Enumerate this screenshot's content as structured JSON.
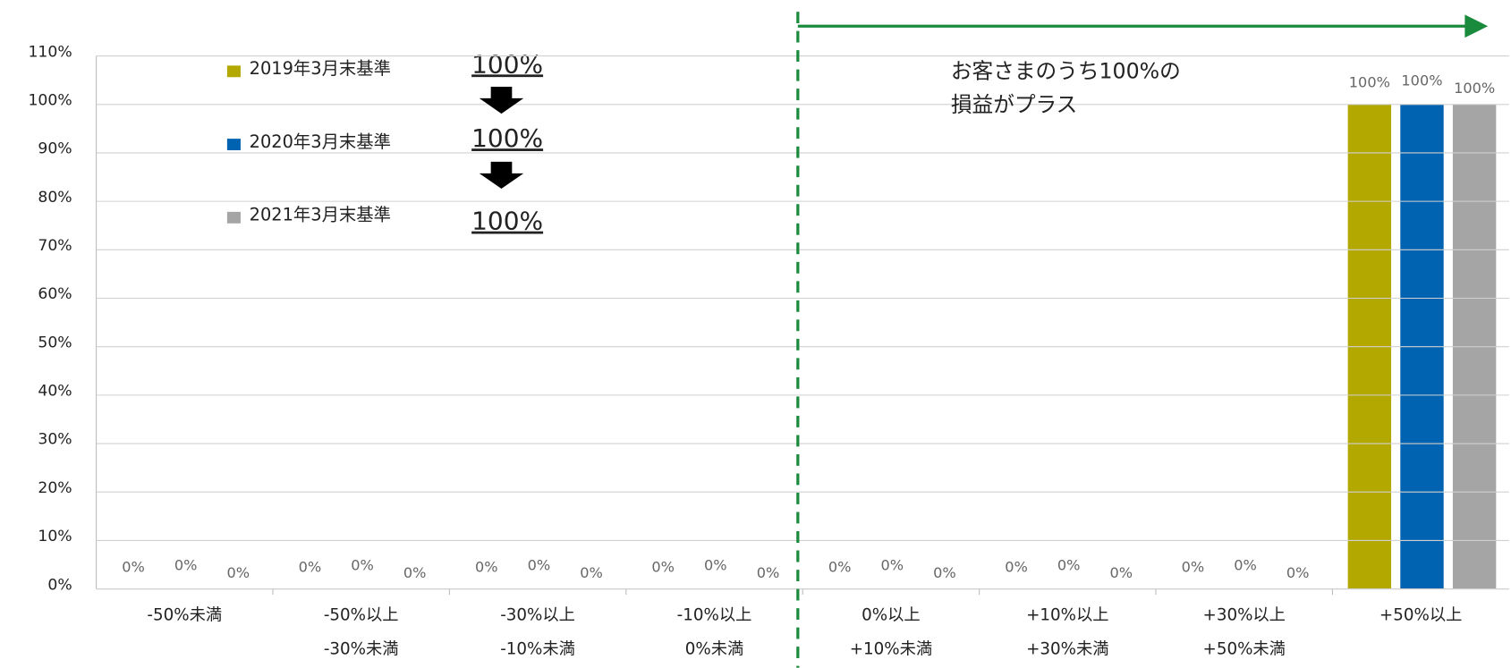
{
  "chart_data": {
    "type": "bar",
    "categories": [
      [
        "-50%未満"
      ],
      [
        "-50%以上",
        "-30%未満"
      ],
      [
        "-30%以上",
        "-10%未満"
      ],
      [
        "-10%以上",
        "0%未満"
      ],
      [
        "0%以上",
        "+10%未満"
      ],
      [
        "+10%以上",
        "+30%未満"
      ],
      [
        "+30%以上",
        "+50%未満"
      ],
      [
        "+50%以上"
      ]
    ],
    "series": [
      {
        "name": "2019年3月末基準",
        "color": "#b3a800",
        "summary_label": "100%",
        "values": [
          0,
          0,
          0,
          0,
          0,
          0,
          0,
          100
        ],
        "value_labels": [
          "0%",
          "0%",
          "0%",
          "0%",
          "0%",
          "0%",
          "0%",
          "100%"
        ]
      },
      {
        "name": "2020年3月末基準",
        "color": "#0063b1",
        "summary_label": "100%",
        "values": [
          0,
          0,
          0,
          0,
          0,
          0,
          0,
          100
        ],
        "value_labels": [
          "0%",
          "0%",
          "0%",
          "0%",
          "0%",
          "0%",
          "0%",
          "100%"
        ]
      },
      {
        "name": "2021年3月末基準",
        "color": "#a5a5a5",
        "summary_label": "100%",
        "values": [
          0,
          0,
          0,
          0,
          0,
          0,
          0,
          100
        ],
        "value_labels": [
          "0%",
          "0%",
          "0%",
          "0%",
          "0%",
          "0%",
          "0%",
          "100%"
        ]
      }
    ],
    "annotation": [
      "お客さまのうち100%の",
      "損益がプラス"
    ],
    "ylim": [
      0,
      110
    ],
    "yticks": [
      {
        "value": 0,
        "label": "0%"
      },
      {
        "value": 10,
        "label": "10%"
      },
      {
        "value": 20,
        "label": "20%"
      },
      {
        "value": 30,
        "label": "30%"
      },
      {
        "value": 40,
        "label": "40%"
      },
      {
        "value": 50,
        "label": "50%"
      },
      {
        "value": 60,
        "label": "60%"
      },
      {
        "value": 70,
        "label": "70%"
      },
      {
        "value": 80,
        "label": "80%"
      },
      {
        "value": 90,
        "label": "90%"
      },
      {
        "value": 100,
        "label": "100%"
      },
      {
        "value": 110,
        "label": "110%"
      }
    ],
    "grid": true
  }
}
